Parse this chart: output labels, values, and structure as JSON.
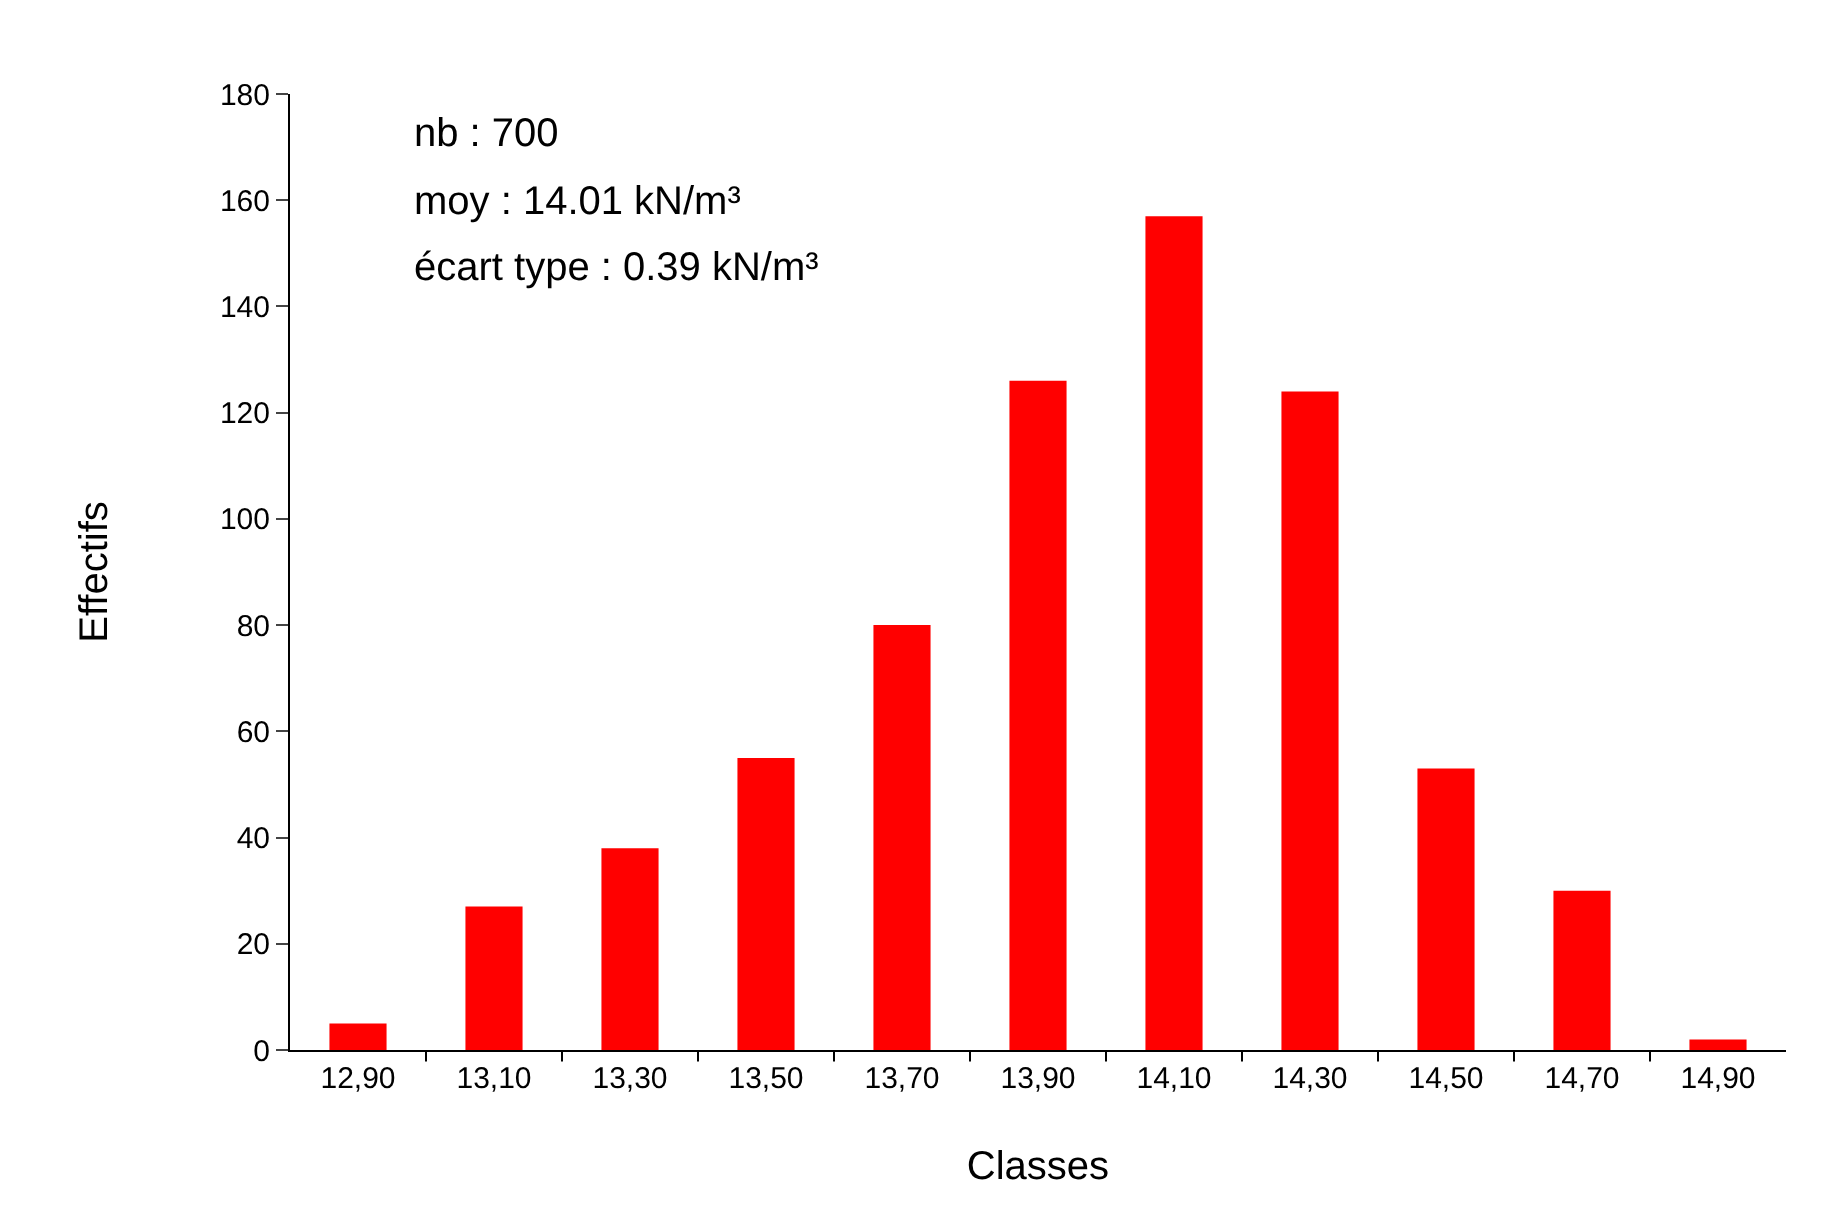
{
  "chart_data": {
    "type": "bar",
    "xlabel": "Classes",
    "ylabel": "Effectifs",
    "categories": [
      "12,90",
      "13,10",
      "13,30",
      "13,50",
      "13,70",
      "13,90",
      "14,10",
      "14,30",
      "14,50",
      "14,70",
      "14,90"
    ],
    "values": [
      5,
      27,
      38,
      55,
      80,
      126,
      157,
      124,
      53,
      30,
      2
    ],
    "color": "#ff0000",
    "ylim": [
      0,
      180
    ],
    "yticks": [
      0,
      20,
      40,
      60,
      80,
      100,
      120,
      140,
      160,
      180
    ],
    "grid": false,
    "annotations": [
      "nb : 700",
      "moy : 14.01 kN/m³",
      "écart type : 0.39 kN/m³"
    ]
  }
}
